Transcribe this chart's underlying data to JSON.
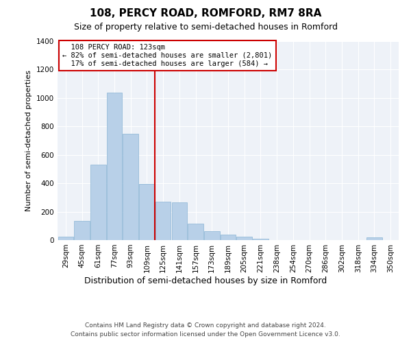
{
  "title1": "108, PERCY ROAD, ROMFORD, RM7 8RA",
  "title2": "Size of property relative to semi-detached houses in Romford",
  "xlabel": "Distribution of semi-detached houses by size in Romford",
  "ylabel": "Number of semi-detached properties",
  "categories": [
    "29sqm",
    "45sqm",
    "61sqm",
    "77sqm",
    "93sqm",
    "109sqm",
    "125sqm",
    "141sqm",
    "157sqm",
    "173sqm",
    "189sqm",
    "205sqm",
    "221sqm",
    "238sqm",
    "254sqm",
    "270sqm",
    "286sqm",
    "302sqm",
    "318sqm",
    "334sqm",
    "350sqm"
  ],
  "values": [
    22,
    133,
    530,
    1040,
    750,
    395,
    270,
    265,
    115,
    65,
    38,
    25,
    12,
    0,
    0,
    0,
    0,
    0,
    0,
    18,
    0
  ],
  "bar_color": "#b8d0e8",
  "bar_edge_color": "#8ab4d4",
  "pct_smaller": 82,
  "n_smaller": 2801,
  "pct_larger": 17,
  "n_larger": 584,
  "marker_label": "108 PERCY ROAD: 123sqm",
  "vline_index": 5.5,
  "ylim": [
    0,
    1400
  ],
  "yticks": [
    0,
    200,
    400,
    600,
    800,
    1000,
    1200,
    1400
  ],
  "annotation_box_color": "#ffffff",
  "annotation_box_edge": "#cc0000",
  "footer1": "Contains HM Land Registry data © Crown copyright and database right 2024.",
  "footer2": "Contains public sector information licensed under the Open Government Licence v3.0.",
  "bg_color": "#eef2f8",
  "grid_color": "#ffffff",
  "title1_fontsize": 11,
  "title2_fontsize": 9,
  "ylabel_fontsize": 8,
  "xlabel_fontsize": 9,
  "tick_fontsize": 7.5,
  "footer_fontsize": 6.5
}
